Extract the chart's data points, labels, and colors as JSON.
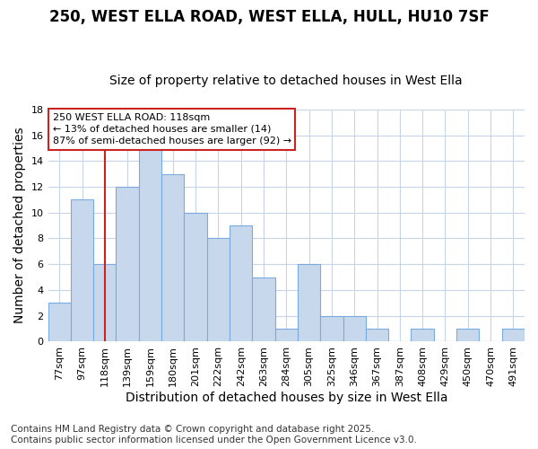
{
  "title1": "250, WEST ELLA ROAD, WEST ELLA, HULL, HU10 7SF",
  "title2": "Size of property relative to detached houses in West Ella",
  "xlabel": "Distribution of detached houses by size in West Ella",
  "ylabel": "Number of detached properties",
  "categories": [
    "77sqm",
    "97sqm",
    "118sqm",
    "139sqm",
    "159sqm",
    "180sqm",
    "201sqm",
    "222sqm",
    "242sqm",
    "263sqm",
    "284sqm",
    "305sqm",
    "325sqm",
    "346sqm",
    "367sqm",
    "387sqm",
    "408sqm",
    "429sqm",
    "450sqm",
    "470sqm",
    "491sqm"
  ],
  "values": [
    3,
    11,
    6,
    12,
    15,
    13,
    10,
    8,
    9,
    5,
    1,
    6,
    2,
    2,
    1,
    0,
    1,
    0,
    1,
    0,
    1
  ],
  "bar_color": "#c8d8ec",
  "bar_edge_color": "#7aabe0",
  "red_line_index": 2,
  "red_line_color": "#cc2222",
  "ylim": [
    0,
    18
  ],
  "yticks": [
    0,
    2,
    4,
    6,
    8,
    10,
    12,
    14,
    16,
    18
  ],
  "annotation_text": "250 WEST ELLA ROAD: 118sqm\n← 13% of detached houses are smaller (14)\n87% of semi-detached houses are larger (92) →",
  "annotation_box_color": "#ffffff",
  "annotation_box_edge": "#cc2222",
  "footer": "Contains HM Land Registry data © Crown copyright and database right 2025.\nContains public sector information licensed under the Open Government Licence v3.0.",
  "background_color": "#ffffff",
  "grid_color": "#c8d4e8",
  "title_fontsize": 12,
  "subtitle_fontsize": 10,
  "axis_label_fontsize": 10,
  "tick_fontsize": 8,
  "annotation_fontsize": 8,
  "footer_fontsize": 7.5
}
